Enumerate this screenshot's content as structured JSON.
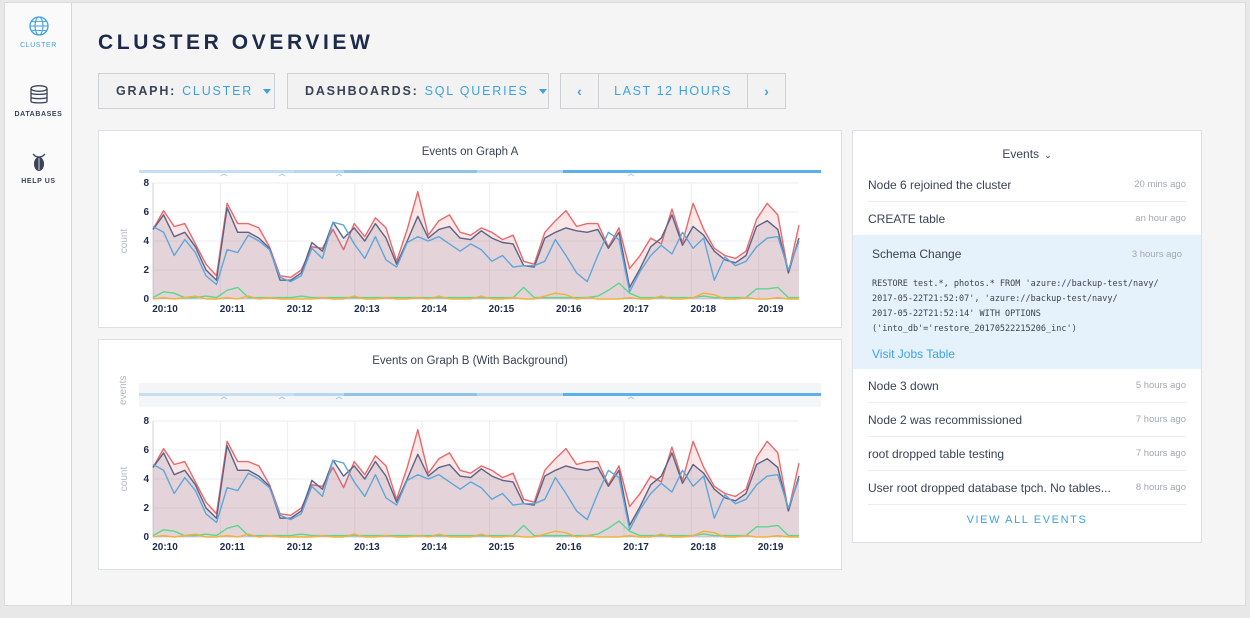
{
  "sidebar": {
    "items": [
      {
        "label": "CLUSTER",
        "icon": "globe-icon"
      },
      {
        "label": "DATABASES",
        "icon": "database-icon"
      },
      {
        "label": "HELP US",
        "icon": "cockroach-icon"
      }
    ]
  },
  "page": {
    "title": "CLUSTER OVERVIEW"
  },
  "controls": {
    "graph": {
      "key": "GRAPH:",
      "value": "CLUSTER"
    },
    "dashboards": {
      "key": "DASHBOARDS:",
      "value": "SQL QUERIES"
    },
    "time_range": {
      "label": "LAST 12 HOURS",
      "prev": "‹",
      "next": "›"
    }
  },
  "colors": {
    "accent": "#3ea2e0",
    "series_red": "#e8696c",
    "series_dark": "#5c6486",
    "series_blue": "#5ea6db",
    "series_green": "#5cd68f",
    "series_orange": "#f2b13a"
  },
  "chart_data": [
    {
      "type": "line",
      "title": "Events on Graph A",
      "ylabel": "count",
      "ylim": [
        0,
        8
      ],
      "yticks": [
        0,
        2,
        4,
        6,
        8
      ],
      "xticks": [
        "20:10",
        "20:11",
        "20:12",
        "20:13",
        "20:14",
        "20:15",
        "20:16",
        "20:17",
        "20:18",
        "20:19"
      ],
      "series": [
        {
          "values": [
            4.8,
            6.1,
            5.0,
            5.2,
            3.8,
            2.4,
            1.6,
            6.6,
            5.2,
            5.2,
            4.9,
            3.6,
            1.6,
            1.5,
            2.0,
            3.6,
            3.5,
            4.8,
            3.4,
            5.2,
            4.3,
            5.6,
            4.9,
            2.6,
            4.8,
            7.4,
            4.4,
            5.4,
            5.8,
            4.6,
            4.4,
            4.9,
            4.6,
            4.1,
            4.4,
            2.6,
            2.4,
            4.6,
            5.4,
            6.1,
            5.0,
            5.2,
            5.2,
            3.6,
            4.9,
            2.1,
            3.0,
            4.2,
            3.8,
            6.2,
            3.9,
            6.6,
            4.8,
            3.5,
            3.0,
            2.8,
            3.3,
            5.5,
            6.6,
            5.8,
            1.8,
            5.1
          ]
        },
        {
          "values": [
            4.8,
            5.8,
            4.3,
            4.6,
            3.6,
            2.0,
            1.3,
            6.3,
            4.6,
            4.6,
            4.2,
            3.5,
            1.3,
            1.3,
            1.8,
            3.9,
            3.3,
            5.3,
            4.2,
            4.9,
            4.0,
            5.2,
            4.2,
            2.4,
            4.0,
            5.7,
            4.2,
            4.8,
            5.0,
            4.2,
            4.1,
            4.7,
            4.2,
            3.9,
            3.8,
            2.3,
            2.2,
            4.2,
            4.6,
            4.9,
            4.7,
            4.6,
            4.8,
            3.5,
            4.6,
            0.8,
            2.1,
            3.6,
            4.2,
            5.8,
            3.7,
            5.0,
            4.4,
            3.3,
            2.7,
            2.5,
            3.0,
            5.0,
            5.4,
            4.8,
            1.8,
            4.2
          ]
        },
        {
          "values": [
            5.0,
            4.6,
            3.0,
            4.1,
            3.2,
            1.6,
            1.0,
            3.4,
            3.2,
            4.4,
            4.0,
            3.4,
            1.5,
            1.2,
            1.6,
            3.5,
            2.8,
            5.3,
            5.1,
            3.8,
            2.8,
            4.3,
            2.7,
            2.2,
            3.9,
            4.3,
            4.0,
            4.3,
            3.8,
            3.3,
            3.8,
            3.4,
            2.6,
            3.0,
            2.2,
            2.3,
            2.3,
            2.6,
            4.1,
            3.0,
            1.8,
            1.2,
            3.0,
            4.6,
            4.1,
            0.5,
            1.9,
            3.0,
            3.7,
            3.1,
            4.6,
            3.5,
            4.2,
            1.3,
            2.9,
            2.3,
            2.6,
            3.6,
            4.2,
            4.3,
            2.0,
            4.0
          ]
        },
        {
          "values": [
            0.1,
            0.5,
            0.4,
            0.1,
            0.1,
            0.2,
            0.1,
            0.6,
            0.8,
            0.1,
            0.1,
            0.1,
            0.1,
            0.1,
            0.2,
            0.1,
            0.1,
            0.1,
            0.1,
            0.1,
            0.1,
            0.1,
            0.1,
            0.1,
            0.1,
            0.1,
            0.1,
            0.1,
            0.1,
            0.1,
            0.1,
            0.1,
            0.1,
            0.1,
            0.1,
            0.8,
            0.1,
            0.1,
            0.1,
            0.1,
            0.1,
            0.1,
            0.2,
            0.6,
            1.1,
            0.4,
            0.1,
            0.1,
            0.1,
            0.1,
            0.1,
            0.1,
            0.2,
            0.1,
            0.1,
            0.1,
            0.1,
            0.7,
            0.7,
            0.8,
            0.1,
            0.1
          ]
        },
        {
          "values": [
            0.0,
            0.1,
            0.0,
            0.1,
            0.2,
            0.0,
            0.0,
            0.1,
            0.0,
            0.2,
            0.0,
            0.1,
            0.0,
            0.0,
            0.0,
            0.0,
            0.1,
            0.0,
            0.0,
            0.2,
            0.0,
            0.0,
            0.1,
            0.0,
            0.0,
            0.1,
            0.0,
            0.2,
            0.0,
            0.0,
            0.0,
            0.2,
            0.0,
            0.0,
            0.1,
            0.0,
            0.0,
            0.2,
            0.4,
            0.3,
            0.0,
            0.1,
            0.0,
            0.0,
            0.0,
            0.1,
            0.0,
            0.0,
            0.2,
            0.0,
            0.0,
            0.1,
            0.4,
            0.3,
            0.0,
            0.0,
            0.1,
            0.0,
            0.0,
            0.1,
            0.0,
            0.0
          ]
        }
      ]
    },
    {
      "type": "line",
      "title": "Events on Graph B (With Background)",
      "ylabel": "count",
      "ylabel_top": "events",
      "ylim": [
        0,
        8
      ],
      "yticks": [
        0,
        2,
        4,
        6,
        8
      ],
      "xticks": [
        "20:10",
        "20:11",
        "20:12",
        "20:13",
        "20:14",
        "20:15",
        "20:16",
        "20:17",
        "20:18",
        "20:19"
      ],
      "series": [
        {
          "values": [
            4.8,
            6.1,
            5.0,
            5.2,
            3.8,
            2.4,
            1.6,
            6.6,
            5.2,
            5.2,
            4.9,
            3.6,
            1.6,
            1.5,
            2.0,
            3.6,
            3.5,
            4.8,
            3.4,
            5.2,
            4.3,
            5.6,
            4.9,
            2.6,
            4.8,
            7.4,
            4.4,
            5.4,
            5.8,
            4.6,
            4.4,
            4.9,
            4.6,
            4.1,
            4.4,
            2.6,
            2.4,
            4.6,
            5.4,
            6.1,
            5.0,
            5.2,
            5.2,
            3.6,
            4.9,
            2.1,
            3.0,
            4.2,
            3.8,
            6.2,
            3.9,
            6.6,
            4.8,
            3.5,
            3.0,
            2.8,
            3.3,
            5.5,
            6.6,
            5.8,
            1.8,
            5.1
          ]
        },
        {
          "values": [
            4.8,
            5.8,
            4.3,
            4.6,
            3.6,
            2.0,
            1.3,
            6.3,
            4.6,
            4.6,
            4.2,
            3.5,
            1.3,
            1.3,
            1.8,
            3.9,
            3.3,
            5.3,
            4.2,
            4.9,
            4.0,
            5.2,
            4.2,
            2.4,
            4.0,
            5.7,
            4.2,
            4.8,
            5.0,
            4.2,
            4.1,
            4.7,
            4.2,
            3.9,
            3.8,
            2.3,
            2.2,
            4.2,
            4.6,
            4.9,
            4.7,
            4.6,
            4.8,
            3.5,
            4.6,
            0.8,
            2.1,
            3.6,
            4.2,
            5.8,
            3.7,
            5.0,
            4.4,
            3.3,
            2.7,
            2.5,
            3.0,
            5.0,
            5.4,
            4.8,
            1.8,
            4.2
          ]
        },
        {
          "values": [
            5.0,
            4.6,
            3.0,
            4.1,
            3.2,
            1.6,
            1.0,
            3.4,
            3.2,
            4.4,
            4.0,
            3.4,
            1.5,
            1.2,
            1.6,
            3.5,
            2.8,
            5.3,
            5.1,
            3.8,
            2.8,
            4.3,
            2.7,
            2.2,
            3.9,
            4.3,
            4.0,
            4.3,
            3.8,
            3.3,
            3.8,
            3.4,
            2.6,
            3.0,
            2.2,
            2.3,
            2.3,
            2.6,
            4.1,
            3.0,
            1.8,
            1.2,
            3.0,
            4.6,
            4.1,
            0.5,
            1.9,
            3.0,
            3.7,
            3.1,
            4.6,
            3.5,
            4.2,
            1.3,
            2.9,
            2.3,
            2.6,
            3.6,
            4.2,
            4.3,
            2.0,
            4.0
          ]
        },
        {
          "values": [
            0.1,
            0.5,
            0.4,
            0.1,
            0.1,
            0.2,
            0.1,
            0.6,
            0.8,
            0.1,
            0.1,
            0.1,
            0.1,
            0.1,
            0.2,
            0.1,
            0.1,
            0.1,
            0.1,
            0.1,
            0.1,
            0.1,
            0.1,
            0.1,
            0.1,
            0.1,
            0.1,
            0.1,
            0.1,
            0.1,
            0.1,
            0.1,
            0.1,
            0.1,
            0.1,
            0.8,
            0.1,
            0.1,
            0.1,
            0.1,
            0.1,
            0.1,
            0.2,
            0.6,
            1.1,
            0.4,
            0.1,
            0.1,
            0.1,
            0.1,
            0.1,
            0.1,
            0.2,
            0.1,
            0.1,
            0.1,
            0.1,
            0.7,
            0.7,
            0.8,
            0.1,
            0.1
          ]
        },
        {
          "values": [
            0.0,
            0.1,
            0.0,
            0.1,
            0.2,
            0.0,
            0.0,
            0.1,
            0.0,
            0.2,
            0.0,
            0.1,
            0.0,
            0.0,
            0.0,
            0.0,
            0.1,
            0.0,
            0.0,
            0.2,
            0.0,
            0.0,
            0.1,
            0.0,
            0.0,
            0.1,
            0.0,
            0.2,
            0.0,
            0.0,
            0.0,
            0.2,
            0.0,
            0.0,
            0.1,
            0.0,
            0.0,
            0.2,
            0.4,
            0.3,
            0.0,
            0.1,
            0.0,
            0.0,
            0.0,
            0.1,
            0.0,
            0.0,
            0.2,
            0.0,
            0.0,
            0.1,
            0.4,
            0.3,
            0.0,
            0.0,
            0.1,
            0.0,
            0.0,
            0.1,
            0.0,
            0.0
          ]
        }
      ]
    }
  ],
  "events": {
    "header": "Events",
    "chevron": "⌄",
    "items": [
      {
        "title": "Node 6 rejoined the cluster",
        "time": "20 mins ago"
      },
      {
        "title": "CREATE table",
        "time": "an hour ago"
      },
      {
        "title": "Schema Change",
        "time": "3 hours ago",
        "detail": "RESTORE test.*, photos.* FROM 'azure://backup-test/navy/\n2017-05-22T21:52:07', 'azure://backup-test/navy/\n2017-05-22T21:52:14' WITH OPTIONS\n('into_db'='restore_20170522215206_inc')",
        "link": "Visit Jobs Table"
      },
      {
        "title": "Node 3 down",
        "time": "5 hours ago"
      },
      {
        "title": "Node 2 was recommissioned",
        "time": "7 hours ago"
      },
      {
        "title": "root dropped table testing",
        "time": "7 hours ago"
      },
      {
        "title": "User root dropped database tpch. No tables...",
        "time": "8 hours ago"
      }
    ],
    "view_all": "VIEW ALL EVENTS"
  }
}
